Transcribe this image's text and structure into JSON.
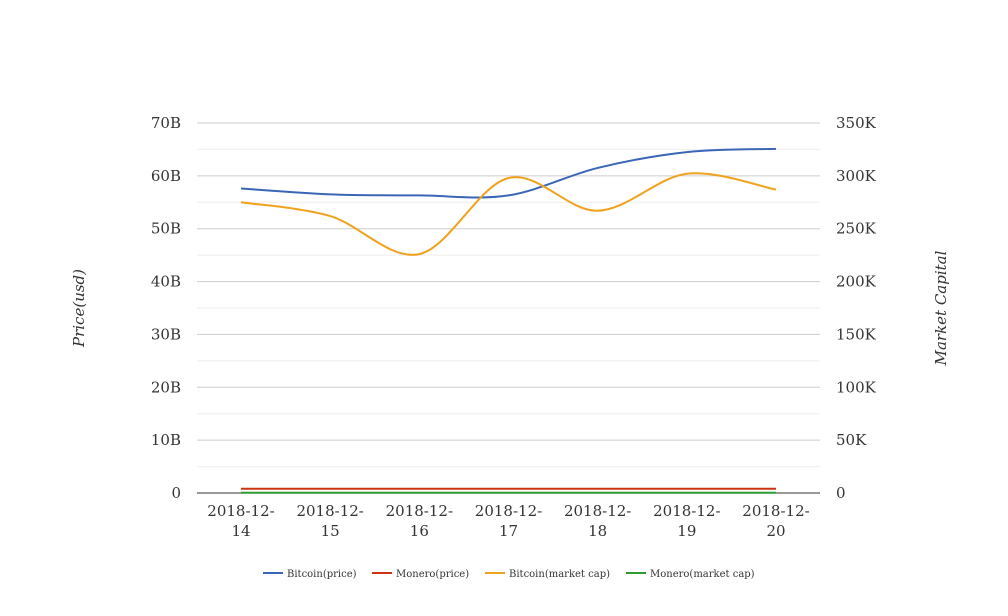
{
  "chart_data": {
    "type": "line",
    "x": [
      "2018-12-14",
      "2018-12-15",
      "2018-12-16",
      "2018-12-17",
      "2018-12-18",
      "2018-12-19",
      "2018-12-20"
    ],
    "x_tick_labels": [
      [
        "2018-12-",
        "14"
      ],
      [
        "2018-12-",
        "15"
      ],
      [
        "2018-12-",
        "16"
      ],
      [
        "2018-12-",
        "17"
      ],
      [
        "2018-12-",
        "18"
      ],
      [
        "2018-12-",
        "19"
      ],
      [
        "2018-12-",
        "20"
      ]
    ],
    "y_left": {
      "label": "Price(usd)",
      "range": [
        0,
        70000000000
      ],
      "ticks": [
        0,
        10000000000,
        20000000000,
        30000000000,
        40000000000,
        50000000000,
        60000000000,
        70000000000
      ],
      "tick_labels": [
        "0",
        "10B",
        "20B",
        "30B",
        "40B",
        "50B",
        "60B",
        "70B"
      ]
    },
    "y_right": {
      "label": "Market Capital",
      "range": [
        0,
        350000
      ],
      "ticks": [
        0,
        50000,
        100000,
        150000,
        200000,
        250000,
        300000,
        350000
      ],
      "tick_labels": [
        "0",
        "50K",
        "100K",
        "150K",
        "200K",
        "250K",
        "300K",
        "350K"
      ]
    },
    "series": [
      {
        "name": "Bitcoin(price)",
        "axis": "left",
        "color": "#3a66b8",
        "values": [
          57600000000,
          56500000000,
          56300000000,
          56300000000,
          61500000000,
          64500000000,
          65100000000
        ]
      },
      {
        "name": "Monero(price)",
        "axis": "left",
        "color": "#cc3311",
        "values": [
          800000000,
          800000000,
          800000000,
          800000000,
          800000000,
          800000000,
          800000000
        ]
      },
      {
        "name": "Bitcoin(market cap)",
        "axis": "right",
        "color": "#f0a21c",
        "values": [
          275000,
          262000,
          226000,
          298000,
          267000,
          302000,
          287000
        ]
      },
      {
        "name": "Monero(market cap)",
        "axis": "right",
        "color": "#2e9c2e",
        "values": [
          200,
          200,
          200,
          200,
          200,
          200,
          200
        ]
      }
    ],
    "grid": true,
    "legend_position": "bottom-center"
  }
}
